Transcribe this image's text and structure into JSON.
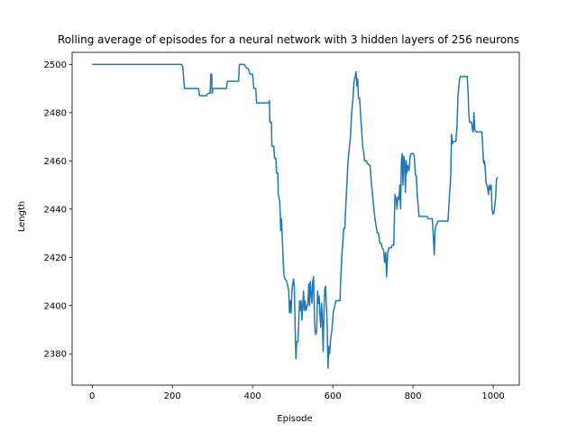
{
  "chart_data": {
    "type": "line",
    "title": "Rolling average of episodes for a neural network with 3 hidden layers of 256 neurons",
    "xlabel": "Episode",
    "ylabel": "Length",
    "xlim": [
      -50,
      1065
    ],
    "ylim": [
      2367,
      2505
    ],
    "x_ticks": [
      0,
      200,
      400,
      600,
      800,
      1000
    ],
    "y_ticks": [
      2380,
      2400,
      2420,
      2440,
      2460,
      2480,
      2500
    ],
    "grid": false,
    "series": [
      {
        "color": "#1f77b4",
        "points": [
          [
            0,
            2500
          ],
          [
            223,
            2500
          ],
          [
            226,
            2499
          ],
          [
            230,
            2490
          ],
          [
            265,
            2490
          ],
          [
            268,
            2487
          ],
          [
            285,
            2487
          ],
          [
            288,
            2488
          ],
          [
            294,
            2488
          ],
          [
            296,
            2496
          ],
          [
            298,
            2496
          ],
          [
            299,
            2488
          ],
          [
            301,
            2490
          ],
          [
            335,
            2490
          ],
          [
            337,
            2493
          ],
          [
            365,
            2493
          ],
          [
            367,
            2500
          ],
          [
            379,
            2500
          ],
          [
            382,
            2499
          ],
          [
            390,
            2498
          ],
          [
            393,
            2496
          ],
          [
            400,
            2496
          ],
          [
            403,
            2490
          ],
          [
            408,
            2490
          ],
          [
            410,
            2484
          ],
          [
            440,
            2484
          ],
          [
            442,
            2485
          ],
          [
            443,
            2476
          ],
          [
            447,
            2476
          ],
          [
            448,
            2466
          ],
          [
            453,
            2466
          ],
          [
            455,
            2461
          ],
          [
            458,
            2461
          ],
          [
            460,
            2455
          ],
          [
            463,
            2455
          ],
          [
            464,
            2446
          ],
          [
            467,
            2444
          ],
          [
            469,
            2438
          ],
          [
            470,
            2431
          ],
          [
            472,
            2436
          ],
          [
            474,
            2428
          ],
          [
            476,
            2420
          ],
          [
            478,
            2413
          ],
          [
            481,
            2411
          ],
          [
            485,
            2410
          ],
          [
            488,
            2408
          ],
          [
            490,
            2406
          ],
          [
            492,
            2397
          ],
          [
            494,
            2402
          ],
          [
            496,
            2397
          ],
          [
            498,
            2406
          ],
          [
            500,
            2409
          ],
          [
            502,
            2411
          ],
          [
            504,
            2408
          ],
          [
            506,
            2392
          ],
          [
            508,
            2378
          ],
          [
            510,
            2385
          ],
          [
            513,
            2385
          ],
          [
            515,
            2393
          ],
          [
            517,
            2402
          ],
          [
            519,
            2398
          ],
          [
            521,
            2402
          ],
          [
            523,
            2394
          ],
          [
            525,
            2400
          ],
          [
            527,
            2406
          ],
          [
            529,
            2398
          ],
          [
            531,
            2402
          ],
          [
            533,
            2398
          ],
          [
            535,
            2399
          ],
          [
            538,
            2401
          ],
          [
            540,
            2409
          ],
          [
            542,
            2400
          ],
          [
            544,
            2410
          ],
          [
            546,
            2405
          ],
          [
            548,
            2401
          ],
          [
            550,
            2410
          ],
          [
            552,
            2412
          ],
          [
            554,
            2397
          ],
          [
            556,
            2389
          ],
          [
            558,
            2388
          ],
          [
            560,
            2390
          ],
          [
            562,
            2406
          ],
          [
            564,
            2401
          ],
          [
            566,
            2404
          ],
          [
            568,
            2396
          ],
          [
            570,
            2391
          ],
          [
            572,
            2401
          ],
          [
            574,
            2394
          ],
          [
            576,
            2381
          ],
          [
            578,
            2398
          ],
          [
            580,
            2407
          ],
          [
            582,
            2408
          ],
          [
            584,
            2400
          ],
          [
            586,
            2392
          ],
          [
            588,
            2374
          ],
          [
            590,
            2383
          ],
          [
            592,
            2380
          ],
          [
            594,
            2385
          ],
          [
            596,
            2388
          ],
          [
            598,
            2390
          ],
          [
            601,
            2397
          ],
          [
            605,
            2400
          ],
          [
            608,
            2402
          ],
          [
            618,
            2402
          ],
          [
            620,
            2412
          ],
          [
            623,
            2422
          ],
          [
            625,
            2426
          ],
          [
            627,
            2432
          ],
          [
            630,
            2432
          ],
          [
            632,
            2440
          ],
          [
            635,
            2450
          ],
          [
            638,
            2460
          ],
          [
            641,
            2465
          ],
          [
            644,
            2470
          ],
          [
            647,
            2480
          ],
          [
            650,
            2485
          ],
          [
            653,
            2493
          ],
          [
            656,
            2495
          ],
          [
            658,
            2497
          ],
          [
            660,
            2491
          ],
          [
            662,
            2494
          ],
          [
            664,
            2486
          ],
          [
            667,
            2486
          ],
          [
            669,
            2480
          ],
          [
            671,
            2475
          ],
          [
            673,
            2470
          ],
          [
            675,
            2465
          ],
          [
            677,
            2464
          ],
          [
            679,
            2460
          ],
          [
            684,
            2460
          ],
          [
            686,
            2459
          ],
          [
            693,
            2458
          ],
          [
            696,
            2451
          ],
          [
            699,
            2446
          ],
          [
            702,
            2441
          ],
          [
            705,
            2436
          ],
          [
            708,
            2433
          ],
          [
            711,
            2430
          ],
          [
            714,
            2430
          ],
          [
            717,
            2426
          ],
          [
            720,
            2426
          ],
          [
            723,
            2424
          ],
          [
            727,
            2423
          ],
          [
            729,
            2418
          ],
          [
            732,
            2422
          ],
          [
            734,
            2412
          ],
          [
            737,
            2422
          ],
          [
            740,
            2424
          ],
          [
            746,
            2424
          ],
          [
            748,
            2425
          ],
          [
            752,
            2425
          ],
          [
            755,
            2446
          ],
          [
            758,
            2444
          ],
          [
            760,
            2440
          ],
          [
            762,
            2445
          ],
          [
            765,
            2444
          ],
          [
            767,
            2450
          ],
          [
            769,
            2440
          ],
          [
            771,
            2460
          ],
          [
            773,
            2463
          ],
          [
            775,
            2450
          ],
          [
            777,
            2462
          ],
          [
            779,
            2460
          ],
          [
            781,
            2447
          ],
          [
            783,
            2460
          ],
          [
            785,
            2455
          ],
          [
            787,
            2458
          ],
          [
            790,
            2456
          ],
          [
            793,
            2462
          ],
          [
            795,
            2463
          ],
          [
            801,
            2463
          ],
          [
            803,
            2462
          ],
          [
            806,
            2454
          ],
          [
            808,
            2454
          ],
          [
            811,
            2445
          ],
          [
            815,
            2437
          ],
          [
            835,
            2437
          ],
          [
            837,
            2436
          ],
          [
            848,
            2436
          ],
          [
            851,
            2428
          ],
          [
            853,
            2421
          ],
          [
            855,
            2431
          ],
          [
            857,
            2433
          ],
          [
            860,
            2434
          ],
          [
            862,
            2435
          ],
          [
            887,
            2435
          ],
          [
            889,
            2440
          ],
          [
            891,
            2446
          ],
          [
            894,
            2453
          ],
          [
            896,
            2471
          ],
          [
            898,
            2467
          ],
          [
            900,
            2468
          ],
          [
            907,
            2468
          ],
          [
            910,
            2475
          ],
          [
            912,
            2487
          ],
          [
            914,
            2490
          ],
          [
            916,
            2494
          ],
          [
            918,
            2495
          ],
          [
            935,
            2495
          ],
          [
            937,
            2490
          ],
          [
            939,
            2480
          ],
          [
            941,
            2476
          ],
          [
            946,
            2476
          ],
          [
            948,
            2473
          ],
          [
            950,
            2472
          ],
          [
            952,
            2480
          ],
          [
            954,
            2473
          ],
          [
            958,
            2472
          ],
          [
            972,
            2472
          ],
          [
            974,
            2465
          ],
          [
            976,
            2459
          ],
          [
            978,
            2460
          ],
          [
            980,
            2457
          ],
          [
            982,
            2451
          ],
          [
            984,
            2450
          ],
          [
            986,
            2449
          ],
          [
            988,
            2446
          ],
          [
            990,
            2450
          ],
          [
            992,
            2448
          ],
          [
            995,
            2450
          ],
          [
            997,
            2440
          ],
          [
            999,
            2438
          ],
          [
            1001,
            2438
          ],
          [
            1003,
            2440
          ],
          [
            1006,
            2445
          ],
          [
            1008,
            2452
          ],
          [
            1010,
            2453
          ],
          [
            1012,
            2453
          ]
        ]
      }
    ]
  }
}
